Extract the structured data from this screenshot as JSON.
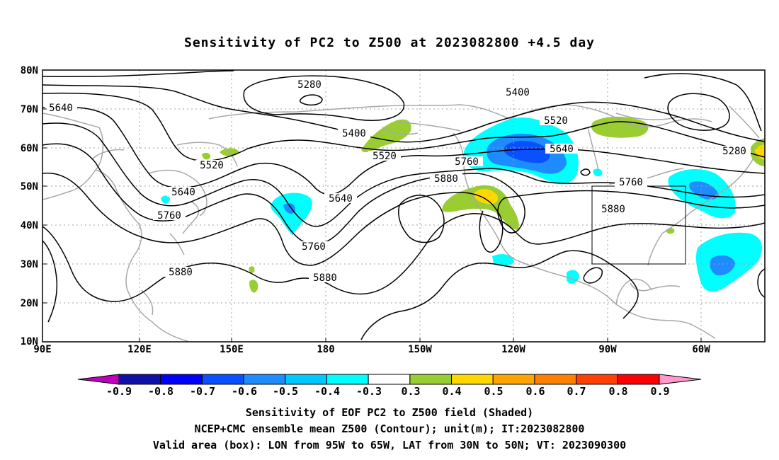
{
  "title": "Sensitivity of PC2 to Z500 at 2023082800 +4.5 day",
  "map": {
    "lat_labels": [
      "80N",
      "70N",
      "60N",
      "50N",
      "40N",
      "30N",
      "20N",
      "10N"
    ],
    "lon_labels": [
      "90E",
      "120E",
      "150E",
      "180",
      "150W",
      "120W",
      "90W",
      "60W"
    ],
    "contour_labels": [
      {
        "text": "5280"
      },
      {
        "text": "5640"
      },
      {
        "text": "5400"
      },
      {
        "text": "5520"
      },
      {
        "text": "5400"
      },
      {
        "text": "5520"
      },
      {
        "text": "5640"
      },
      {
        "text": "5520"
      },
      {
        "text": "5760"
      },
      {
        "text": "5880"
      },
      {
        "text": "5760"
      },
      {
        "text": "5640"
      },
      {
        "text": "5640"
      },
      {
        "text": "5760"
      },
      {
        "text": "5760"
      },
      {
        "text": "5880"
      },
      {
        "text": "5880"
      },
      {
        "text": "5880"
      },
      {
        "text": "5280"
      }
    ],
    "valid_box": {
      "lon": [
        "95W",
        "65W"
      ],
      "lat": [
        "30N",
        "50N"
      ]
    }
  },
  "colorbar": {
    "labels": [
      "-0.9",
      "-0.8",
      "-0.7",
      "-0.6",
      "-0.5",
      "-0.4",
      "-0.3",
      "0.3",
      "0.4",
      "0.5",
      "0.6",
      "0.7",
      "0.8",
      "0.9"
    ],
    "colors": [
      "#c000c0",
      "#1010a8",
      "#0000ff",
      "#0a50ff",
      "#1e8cff",
      "#00c8ff",
      "#00ffff",
      "#ffffff",
      "#9acd32",
      "#ffd700",
      "#ffa500",
      "#ff8000",
      "#ff4000",
      "#ff0000",
      "#ff99cc"
    ]
  },
  "captions": {
    "line1": "Sensitivity of EOF PC2 to Z500 field (Shaded)",
    "line2": "NCEP+CMC ensemble mean Z500 (Contour); unit(m); IT:2023082800",
    "line3": "Valid area (box): LON from 95W to 65W, LAT from 30N to 50N; VT: 2023090300"
  }
}
